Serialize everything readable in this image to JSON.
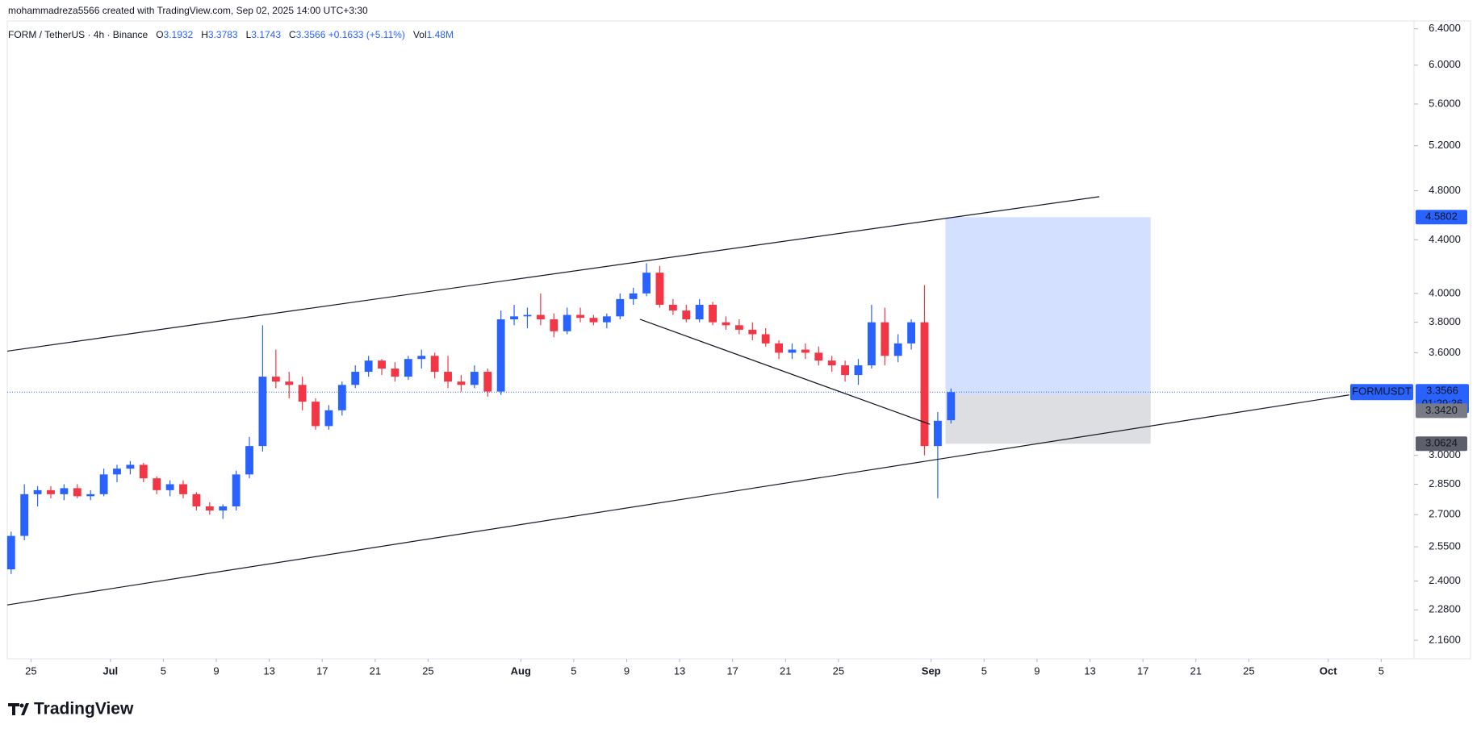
{
  "header": {
    "credit": "mohammadreza5566 created with TradingView.com, Sep 02, 2025 14:00 UTC+3:30"
  },
  "footer": {
    "logo": "TradingView"
  },
  "chart_data": {
    "type": "candlestick",
    "legend": {
      "symbol": "FORM / TetherUS · 4h · Binance",
      "items": [
        {
          "key": "O",
          "value": 3.1932
        },
        {
          "key": "H",
          "value": 3.3783
        },
        {
          "key": "L",
          "value": 3.1743
        },
        {
          "key": "C",
          "value": 3.3566
        }
      ],
      "change": {
        "value": 0.1633,
        "label": "+0.1633"
      },
      "change_pct": {
        "value": 5.11,
        "label": "(+5.11%)"
      },
      "volume_key": "Vol",
      "volume": {
        "value": 1480000,
        "label": "1.48M"
      }
    },
    "up_color": "#2962ff",
    "down_color": "#f23645",
    "log_scale": true,
    "grid": false,
    "candles": {
      "x": [
        "2025-06-23",
        "2025-06-24",
        "2025-06-25",
        "2025-06-26",
        "2025-06-27",
        "2025-06-28",
        "2025-06-29",
        "2025-06-30",
        "2025-07-01",
        "2025-07-02",
        "2025-07-03",
        "2025-07-04",
        "2025-07-05",
        "2025-07-06",
        "2025-07-07",
        "2025-07-08",
        "2025-07-09",
        "2025-07-10",
        "2025-07-11",
        "2025-07-12",
        "2025-07-13",
        "2025-07-14",
        "2025-07-15",
        "2025-07-16",
        "2025-07-17",
        "2025-07-18",
        "2025-07-19",
        "2025-07-20",
        "2025-07-21",
        "2025-07-22",
        "2025-07-23",
        "2025-07-24",
        "2025-07-25",
        "2025-07-26",
        "2025-07-27",
        "2025-07-28",
        "2025-07-29",
        "2025-07-30",
        "2025-07-31",
        "2025-08-01",
        "2025-08-02",
        "2025-08-03",
        "2025-08-04",
        "2025-08-05",
        "2025-08-06",
        "2025-08-07",
        "2025-08-08",
        "2025-08-09",
        "2025-08-10",
        "2025-08-11",
        "2025-08-12",
        "2025-08-13",
        "2025-08-14",
        "2025-08-15",
        "2025-08-16",
        "2025-08-17",
        "2025-08-18",
        "2025-08-19",
        "2025-08-20",
        "2025-08-21",
        "2025-08-22",
        "2025-08-23",
        "2025-08-24",
        "2025-08-25",
        "2025-08-26",
        "2025-08-27",
        "2025-08-28",
        "2025-08-29",
        "2025-08-30",
        "2025-08-31",
        "2025-09-01",
        "2025-09-02"
      ],
      "open": [
        2.45,
        2.6,
        2.8,
        2.82,
        2.8,
        2.83,
        2.79,
        2.8,
        2.9,
        2.93,
        2.95,
        2.88,
        2.82,
        2.85,
        2.8,
        2.74,
        2.72,
        2.74,
        2.9,
        3.05,
        3.45,
        3.42,
        3.4,
        3.3,
        3.16,
        3.25,
        3.4,
        3.48,
        3.55,
        3.5,
        3.45,
        3.56,
        3.58,
        3.48,
        3.42,
        3.4,
        3.48,
        3.36,
        3.82,
        3.84,
        3.85,
        3.82,
        3.74,
        3.85,
        3.83,
        3.8,
        3.84,
        3.96,
        4.0,
        4.15,
        3.92,
        3.88,
        3.82,
        3.92,
        3.8,
        3.78,
        3.75,
        3.72,
        3.66,
        3.6,
        3.62,
        3.6,
        3.55,
        3.52,
        3.46,
        3.52,
        3.8,
        3.58,
        3.66,
        3.8,
        3.05,
        3.1932
      ],
      "high": [
        2.62,
        2.85,
        2.84,
        2.84,
        2.85,
        2.85,
        2.82,
        2.93,
        2.95,
        2.97,
        2.96,
        2.89,
        2.87,
        2.87,
        2.81,
        2.76,
        2.75,
        2.92,
        3.1,
        3.78,
        3.62,
        3.48,
        3.45,
        3.32,
        3.28,
        3.42,
        3.52,
        3.58,
        3.56,
        3.54,
        3.58,
        3.62,
        3.6,
        3.58,
        3.46,
        3.52,
        3.5,
        3.88,
        3.92,
        3.9,
        4.0,
        3.86,
        3.9,
        3.9,
        3.85,
        3.86,
        4.0,
        4.04,
        4.22,
        4.2,
        3.96,
        3.92,
        3.96,
        3.94,
        3.84,
        3.82,
        3.8,
        3.76,
        3.68,
        3.66,
        3.66,
        3.64,
        3.58,
        3.55,
        3.56,
        3.92,
        3.9,
        3.72,
        3.82,
        4.06,
        3.24,
        3.3783
      ],
      "low": [
        2.43,
        2.58,
        2.74,
        2.78,
        2.77,
        2.78,
        2.77,
        2.79,
        2.86,
        2.9,
        2.86,
        2.8,
        2.79,
        2.78,
        2.72,
        2.7,
        2.68,
        2.72,
        2.88,
        3.02,
        3.38,
        3.32,
        3.25,
        3.14,
        3.14,
        3.22,
        3.38,
        3.45,
        3.46,
        3.42,
        3.43,
        3.5,
        3.44,
        3.38,
        3.36,
        3.38,
        3.33,
        3.34,
        3.78,
        3.76,
        3.78,
        3.7,
        3.72,
        3.8,
        3.78,
        3.76,
        3.82,
        3.92,
        3.98,
        3.9,
        3.85,
        3.8,
        3.8,
        3.78,
        3.75,
        3.72,
        3.68,
        3.64,
        3.56,
        3.56,
        3.56,
        3.52,
        3.48,
        3.42,
        3.4,
        3.5,
        3.52,
        3.54,
        3.62,
        3.0,
        2.78,
        3.1743
      ],
      "close": [
        2.6,
        2.8,
        2.82,
        2.8,
        2.83,
        2.79,
        2.8,
        2.9,
        2.93,
        2.95,
        2.88,
        2.82,
        2.85,
        2.8,
        2.74,
        2.72,
        2.74,
        2.9,
        3.05,
        3.45,
        3.42,
        3.4,
        3.3,
        3.16,
        3.25,
        3.4,
        3.48,
        3.55,
        3.5,
        3.45,
        3.56,
        3.58,
        3.48,
        3.42,
        3.4,
        3.48,
        3.36,
        3.82,
        3.84,
        3.85,
        3.82,
        3.74,
        3.85,
        3.83,
        3.8,
        3.84,
        3.96,
        4.0,
        4.15,
        3.92,
        3.88,
        3.82,
        3.92,
        3.8,
        3.78,
        3.75,
        3.72,
        3.66,
        3.6,
        3.62,
        3.6,
        3.55,
        3.52,
        3.46,
        3.52,
        3.8,
        3.58,
        3.66,
        3.8,
        3.05,
        3.19,
        3.3566
      ]
    },
    "xlim": [
      "2025-06-23T05:00",
      "2025-10-07T10:00"
    ],
    "xticks": [
      {
        "value": "2025-06-25",
        "label": "25"
      },
      {
        "value": "2025-07-01",
        "label": "Jul"
      },
      {
        "value": "2025-07-05",
        "label": "5"
      },
      {
        "value": "2025-07-09",
        "label": "9"
      },
      {
        "value": "2025-07-13",
        "label": "13"
      },
      {
        "value": "2025-07-17",
        "label": "17"
      },
      {
        "value": "2025-07-21",
        "label": "21"
      },
      {
        "value": "2025-07-25",
        "label": "25"
      },
      {
        "value": "2025-08-01",
        "label": "Aug"
      },
      {
        "value": "2025-08-05",
        "label": "5"
      },
      {
        "value": "2025-08-09",
        "label": "9"
      },
      {
        "value": "2025-08-13",
        "label": "13"
      },
      {
        "value": "2025-08-17",
        "label": "17"
      },
      {
        "value": "2025-08-21",
        "label": "21"
      },
      {
        "value": "2025-08-25",
        "label": "25"
      },
      {
        "value": "2025-09-01",
        "label": "Sep"
      },
      {
        "value": "2025-09-05",
        "label": "5"
      },
      {
        "value": "2025-09-09",
        "label": "9"
      },
      {
        "value": "2025-09-13",
        "label": "13"
      },
      {
        "value": "2025-09-17",
        "label": "17"
      },
      {
        "value": "2025-09-21",
        "label": "21"
      },
      {
        "value": "2025-09-25",
        "label": "25"
      },
      {
        "value": "2025-10-01",
        "label": "Oct"
      },
      {
        "value": "2025-10-05",
        "label": "5"
      }
    ],
    "ylim": [
      2.09,
      6.49
    ],
    "yticks": [
      {
        "value": 6.4,
        "label": "6.4000"
      },
      {
        "value": 6.0,
        "label": "6.0000"
      },
      {
        "value": 5.6,
        "label": "5.6000"
      },
      {
        "value": 5.2,
        "label": "5.2000"
      },
      {
        "value": 4.8,
        "label": "4.8000"
      },
      {
        "value": 4.4,
        "label": "4.4000"
      },
      {
        "value": 4.0,
        "label": "4.0000"
      },
      {
        "value": 3.8,
        "label": "3.8000"
      },
      {
        "value": 3.6,
        "label": "3.6000"
      },
      {
        "value": 3.0,
        "label": "3.0000"
      },
      {
        "value": 2.85,
        "label": "2.8500"
      },
      {
        "value": 2.7,
        "label": "2.7000"
      },
      {
        "value": 2.55,
        "label": "2.5500"
      },
      {
        "value": 2.4,
        "label": "2.4000"
      },
      {
        "value": 2.28,
        "label": "2.2800"
      },
      {
        "value": 2.16,
        "label": "2.1600"
      }
    ],
    "trend_lines": [
      {
        "x": [
          "2025-06-23T05:00",
          "2025-09-13T17:00"
        ],
        "values": [
          3.61,
          4.75
        ]
      },
      {
        "x": [
          "2025-06-23T05:00",
          "2025-10-02T14:00"
        ],
        "values": [
          2.3,
          3.34
        ]
      },
      {
        "x": [
          "2025-08-10T00:00",
          "2025-08-31T22:00"
        ],
        "values": [
          3.82,
          3.17
        ]
      }
    ],
    "long_position": {
      "x": [
        "2025-09-02T02:00",
        "2025-09-17T14:00"
      ],
      "target": 4.5802,
      "entry": {
        "value": 3.342,
        "label": "3.3420"
      },
      "stop": 3.0624
    },
    "last_price": {
      "symbol": "FORMUSDT",
      "value": 3.3566,
      "countdown": "01:29:36"
    }
  }
}
